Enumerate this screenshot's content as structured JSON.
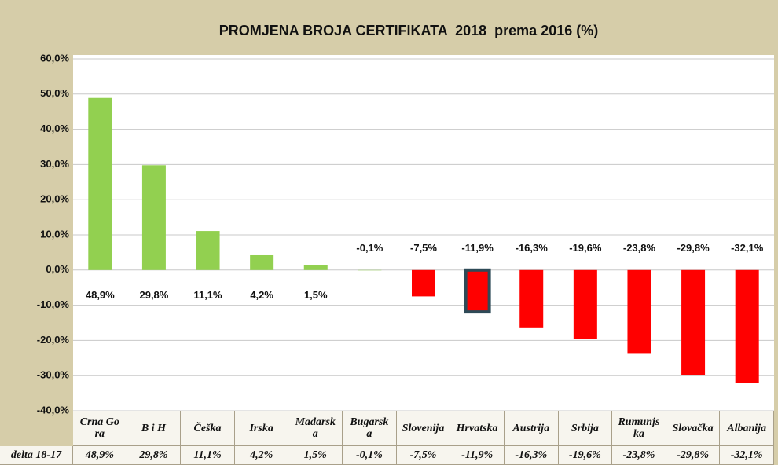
{
  "chart_data": {
    "type": "bar",
    "title": "PROMJENA BROJA CERTIFIKATA  2018  prema 2016 (%)",
    "categories": [
      "Crna Gora",
      "B i H",
      "Češka",
      "Irska",
      "Mađarska",
      "Bugarska",
      "Slovenija",
      "Hrvatska",
      "Austrija",
      "Srbija",
      "Rumunjska",
      "Slovačka",
      "Albanija"
    ],
    "values": [
      48.9,
      29.8,
      11.1,
      4.2,
      1.5,
      -0.1,
      -7.5,
      -11.9,
      -16.3,
      -19.6,
      -23.8,
      -29.8,
      -32.1
    ],
    "value_labels": [
      "48,9%",
      "29,8%",
      "11,1%",
      "4,2%",
      "1,5%",
      "-0,1%",
      "-7,5%",
      "-11,9%",
      "-16,3%",
      "-19,6%",
      "-23,8%",
      "-29,8%",
      "-32,1%"
    ],
    "colors": [
      "#92d050",
      "#92d050",
      "#92d050",
      "#92d050",
      "#92d050",
      "#92d050",
      "#ff0000",
      "#ff0000",
      "#ff0000",
      "#ff0000",
      "#ff0000",
      "#ff0000",
      "#ff0000"
    ],
    "edgecolors": [
      null,
      null,
      null,
      null,
      null,
      null,
      null,
      "#2e4a57",
      null,
      null,
      null,
      null,
      null
    ],
    "table_row_label": "delta 18-17",
    "ylim": [
      -40,
      60
    ],
    "yticks": [
      {
        "value": -40,
        "label": "-40,0%"
      },
      {
        "value": -30,
        "label": "-30,0%"
      },
      {
        "value": -20,
        "label": "-20,0%"
      },
      {
        "value": -10,
        "label": "-10,0%"
      },
      {
        "value": 0,
        "label": "0,0%"
      },
      {
        "value": 10,
        "label": "10,0%"
      },
      {
        "value": 20,
        "label": "20,0%"
      },
      {
        "value": 30,
        "label": "30,0%"
      },
      {
        "value": 40,
        "label": "40,0%"
      },
      {
        "value": 50,
        "label": "50,0%"
      },
      {
        "value": 60,
        "label": "60,0%"
      }
    ],
    "grid": true
  }
}
